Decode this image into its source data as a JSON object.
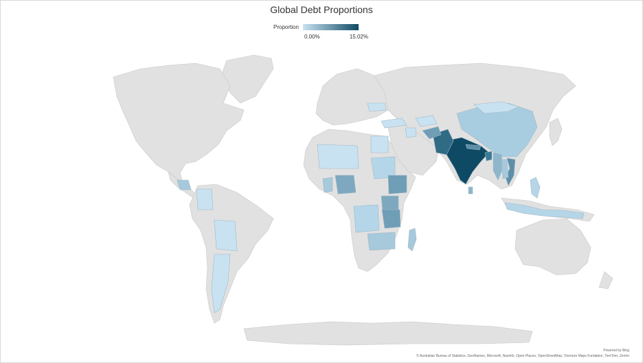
{
  "title": "Global Debt Proportions",
  "legend": {
    "label": "Proportion",
    "min": "0.00%",
    "max": "15.02%",
    "color_low": "#c9e2f2",
    "color_high": "#0f4a64"
  },
  "map_data": {
    "type": "choropleth",
    "no_data_color": "#e1e1e1",
    "shaded_countries": [
      {
        "name": "India",
        "color": "#0f4a64"
      },
      {
        "name": "Pakistan",
        "color": "#2f6b85"
      },
      {
        "name": "Bangladesh",
        "color": "#3a7a96"
      },
      {
        "name": "Afghanistan",
        "color": "#6f9eb6"
      },
      {
        "name": "Nepal",
        "color": "#5d8fa8"
      },
      {
        "name": "Myanmar",
        "color": "#8fb7cc"
      },
      {
        "name": "Vietnam",
        "color": "#5d8fa8"
      },
      {
        "name": "Laos",
        "color": "#a6c9dc"
      },
      {
        "name": "Cambodia",
        "color": "#a6c9dc"
      },
      {
        "name": "China",
        "color": "#a9cde0"
      },
      {
        "name": "Mongolia",
        "color": "#c9e2f2"
      },
      {
        "name": "Philippines",
        "color": "#b5d6e8"
      },
      {
        "name": "Indonesia",
        "color": "#b5d6e8"
      },
      {
        "name": "Sri Lanka",
        "color": "#8fb7cc"
      },
      {
        "name": "Nigeria",
        "color": "#7ea8bf"
      },
      {
        "name": "Ethiopia",
        "color": "#6f9eb6"
      },
      {
        "name": "Kenya",
        "color": "#7ea8bf"
      },
      {
        "name": "Tanzania",
        "color": "#6f9eb6"
      },
      {
        "name": "Uganda",
        "color": "#8fb7cc"
      },
      {
        "name": "Sudan",
        "color": "#b5d6e8"
      },
      {
        "name": "Egypt",
        "color": "#c9e2f2"
      },
      {
        "name": "Democratic Republic of the Congo",
        "color": "#b5d6e8"
      },
      {
        "name": "Mozambique",
        "color": "#a6c9dc"
      },
      {
        "name": "Madagascar",
        "color": "#a6c9dc"
      },
      {
        "name": "Zambia",
        "color": "#b5d6e8"
      },
      {
        "name": "Mali",
        "color": "#c9e2f2"
      },
      {
        "name": "Niger",
        "color": "#c9e2f2"
      },
      {
        "name": "Ghana",
        "color": "#a6c9dc"
      },
      {
        "name": "Mexico",
        "color": "#e1e1e1"
      },
      {
        "name": "Guatemala",
        "color": "#a6c9dc"
      },
      {
        "name": "Honduras",
        "color": "#a6c9dc"
      },
      {
        "name": "Colombia",
        "color": "#c9e2f2"
      },
      {
        "name": "Ecuador",
        "color": "#c9e2f2"
      },
      {
        "name": "Bolivia",
        "color": "#c9e2f2"
      },
      {
        "name": "Paraguay",
        "color": "#c9e2f2"
      },
      {
        "name": "Argentina",
        "color": "#c9e2f2"
      },
      {
        "name": "Turkey",
        "color": "#c9e2f2"
      },
      {
        "name": "Ukraine",
        "color": "#c9e2f2"
      },
      {
        "name": "Uzbekistan",
        "color": "#c9e2f2"
      },
      {
        "name": "Iraq",
        "color": "#c9e2f2"
      }
    ]
  },
  "footer": {
    "powered_by": "Powered by Bing",
    "attribution": "© Australian Bureau of Statistics, GeoNames, Microsoft, Navinfo, Open Places, OpenStreetMap, Overture Maps Fundation, TomTom, Zenrin"
  }
}
